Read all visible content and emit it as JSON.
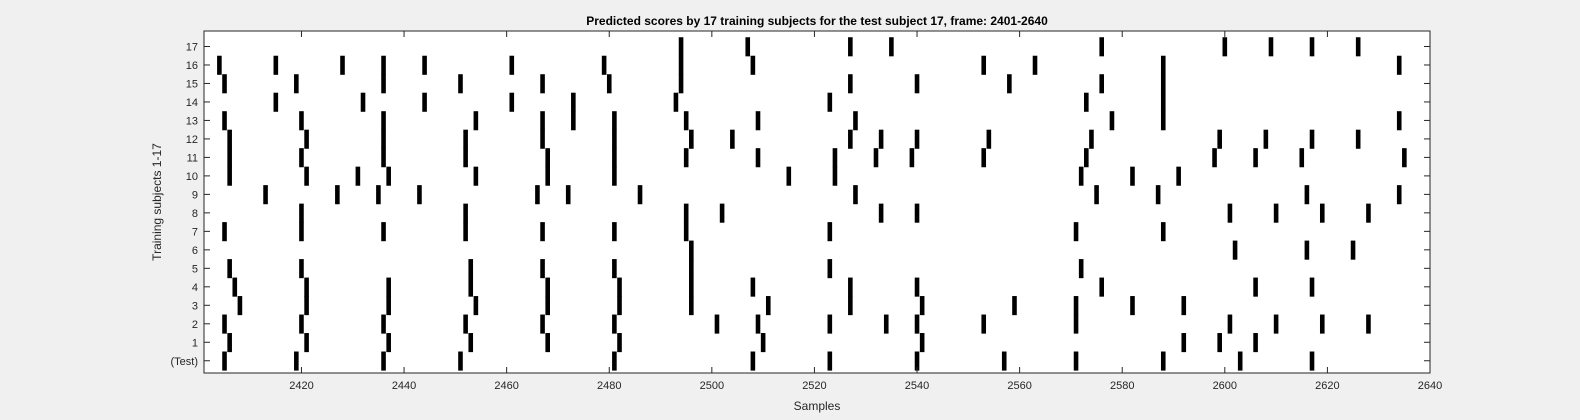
{
  "chart_data": {
    "type": "raster",
    "title": "Predicted scores by 17 training subjects for the test subject 17, frame: 2401-2640",
    "xlabel": "Samples",
    "ylabel": "Training subjects 1-17",
    "xlim": [
      2401,
      2640
    ],
    "x_ticks": [
      2420,
      2440,
      2460,
      2480,
      2500,
      2520,
      2540,
      2560,
      2580,
      2600,
      2620,
      2640
    ],
    "y_tick_labels": [
      "(Test)",
      "1",
      "2",
      "3",
      "4",
      "5",
      "6",
      "7",
      "8",
      "9",
      "10",
      "11",
      "12",
      "13",
      "14",
      "15",
      "16",
      "17"
    ],
    "colors": {
      "background": "#f0f0f0",
      "plot_area": "#ffffff",
      "mark": "#000000",
      "axis": "#262626"
    },
    "rows": [
      {
        "label": "(Test)",
        "x": [
          2405,
          2419,
          2436,
          2451,
          2481,
          2508,
          2523,
          2540,
          2557,
          2571,
          2588,
          2603,
          2617
        ]
      },
      {
        "label": "1",
        "x": [
          2406,
          2421,
          2437,
          2453,
          2468,
          2482,
          2510,
          2541,
          2592,
          2599,
          2606
        ]
      },
      {
        "label": "2",
        "x": [
          2405,
          2420,
          2436,
          2452,
          2467,
          2481,
          2501,
          2509,
          2523,
          2534,
          2540,
          2553,
          2571,
          2601,
          2610,
          2619,
          2628
        ]
      },
      {
        "label": "3",
        "x": [
          2408,
          2421,
          2437,
          2454,
          2468,
          2482,
          2496,
          2511,
          2527,
          2541,
          2559,
          2571,
          2582,
          2592
        ]
      },
      {
        "label": "4",
        "x": [
          2407,
          2421,
          2437,
          2453,
          2468,
          2482,
          2496,
          2508,
          2527,
          2540,
          2576,
          2606,
          2617
        ]
      },
      {
        "label": "5",
        "x": [
          2406,
          2420,
          2453,
          2467,
          2481,
          2496,
          2523,
          2572
        ]
      },
      {
        "label": "6",
        "x": [
          2496,
          2602,
          2616,
          2625
        ]
      },
      {
        "label": "7",
        "x": [
          2405,
          2420,
          2436,
          2452,
          2467,
          2481,
          2495,
          2523,
          2571,
          2588
        ]
      },
      {
        "label": "8",
        "x": [
          2420,
          2452,
          2495,
          2502,
          2533,
          2540,
          2601,
          2610,
          2619,
          2628
        ]
      },
      {
        "label": "9",
        "x": [
          2413,
          2427,
          2435,
          2443,
          2466,
          2472,
          2486,
          2528,
          2575,
          2587,
          2616,
          2634
        ]
      },
      {
        "label": "10",
        "x": [
          2406,
          2421,
          2431,
          2437,
          2454,
          2468,
          2481,
          2515,
          2524,
          2572,
          2582,
          2591
        ]
      },
      {
        "label": "11",
        "x": [
          2406,
          2420,
          2436,
          2452,
          2468,
          2481,
          2495,
          2509,
          2524,
          2532,
          2539,
          2553,
          2573,
          2598,
          2606,
          2615,
          2635
        ]
      },
      {
        "label": "12",
        "x": [
          2406,
          2421,
          2436,
          2452,
          2467,
          2481,
          2496,
          2504,
          2527,
          2533,
          2540,
          2554,
          2574,
          2599,
          2608,
          2617,
          2626
        ]
      },
      {
        "label": "13",
        "x": [
          2405,
          2420,
          2436,
          2454,
          2467,
          2473,
          2481,
          2495,
          2509,
          2528,
          2578,
          2588,
          2634
        ]
      },
      {
        "label": "14",
        "x": [
          2415,
          2432,
          2444,
          2461,
          2473,
          2493,
          2523,
          2573,
          2588
        ]
      },
      {
        "label": "15",
        "x": [
          2405,
          2419,
          2436,
          2451,
          2467,
          2480,
          2494,
          2527,
          2540,
          2558,
          2576,
          2588
        ]
      },
      {
        "label": "16",
        "x": [
          2404,
          2415,
          2428,
          2436,
          2444,
          2461,
          2479,
          2494,
          2508,
          2553,
          2563,
          2588,
          2634
        ]
      },
      {
        "label": "17",
        "x": [
          2494,
          2507,
          2527,
          2535,
          2576,
          2600,
          2609,
          2617,
          2626
        ]
      }
    ]
  }
}
